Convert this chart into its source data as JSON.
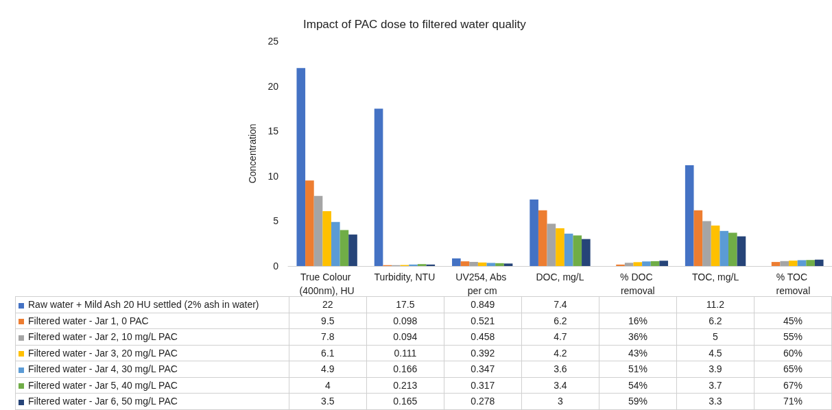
{
  "chart_data": {
    "type": "bar",
    "title": "Impact of PAC dose to filtered water quality",
    "ylabel": "Concentration",
    "categories": [
      "True Colour (400nm), HU",
      "Turbidity, NTU",
      "UV254, Abs per cm",
      "DOC, mg/L",
      "% DOC removal",
      "TOC, mg/L",
      "% TOC removal"
    ],
    "series": [
      {
        "name": "Raw water + Mild Ash 20 HU settled (2% ash in water)",
        "color": "#4472c4",
        "values": [
          22,
          17.5,
          0.849,
          7.4,
          null,
          11.2,
          null
        ],
        "value_labels": [
          "22",
          "17.5",
          "0.849",
          "7.4",
          null,
          "11.2",
          null
        ]
      },
      {
        "name": "Filtered water - Jar 1, 0 PAC",
        "color": "#ed7d31",
        "values": [
          9.5,
          0.098,
          0.521,
          6.2,
          0.16,
          6.2,
          0.45
        ],
        "value_labels": [
          "9.5",
          "0.098",
          "0.521",
          "6.2",
          "16%",
          "6.2",
          "45%"
        ]
      },
      {
        "name": "Filtered water - Jar 2, 10 mg/L PAC",
        "color": "#a5a5a5",
        "values": [
          7.8,
          0.094,
          0.458,
          4.7,
          0.36,
          5,
          0.55
        ],
        "value_labels": [
          "7.8",
          "0.094",
          "0.458",
          "4.7",
          "36%",
          "5",
          "55%"
        ]
      },
      {
        "name": "Filtered water - Jar 3, 20 mg/L PAC",
        "color": "#ffc000",
        "values": [
          6.1,
          0.111,
          0.392,
          4.2,
          0.43,
          4.5,
          0.6
        ],
        "value_labels": [
          "6.1",
          "0.111",
          "0.392",
          "4.2",
          "43%",
          "4.5",
          "60%"
        ]
      },
      {
        "name": "Filtered water - Jar 4, 30 mg/L PAC",
        "color": "#5b9bd5",
        "values": [
          4.9,
          0.166,
          0.347,
          3.6,
          0.51,
          3.9,
          0.65
        ],
        "value_labels": [
          "4.9",
          "0.166",
          "0.347",
          "3.6",
          "51%",
          "3.9",
          "65%"
        ]
      },
      {
        "name": "Filtered water - Jar 5, 40 mg/L PAC",
        "color": "#70ad47",
        "values": [
          4,
          0.213,
          0.317,
          3.4,
          0.54,
          3.7,
          0.67
        ],
        "value_labels": [
          "4",
          "0.213",
          "0.317",
          "3.4",
          "54%",
          "3.7",
          "67%"
        ]
      },
      {
        "name": "Filtered water - Jar 6, 50 mg/L PAC",
        "color": "#264478",
        "values": [
          3.5,
          0.165,
          0.278,
          3,
          0.59,
          3.3,
          0.71
        ],
        "value_labels": [
          "3.5",
          "0.165",
          "0.278",
          "3",
          "59%",
          "3.3",
          "71%"
        ]
      }
    ],
    "ylim": [
      0,
      25
    ],
    "yticks": [
      0,
      5,
      10,
      15,
      20,
      25
    ],
    "grid": false,
    "legend": "bottom"
  }
}
